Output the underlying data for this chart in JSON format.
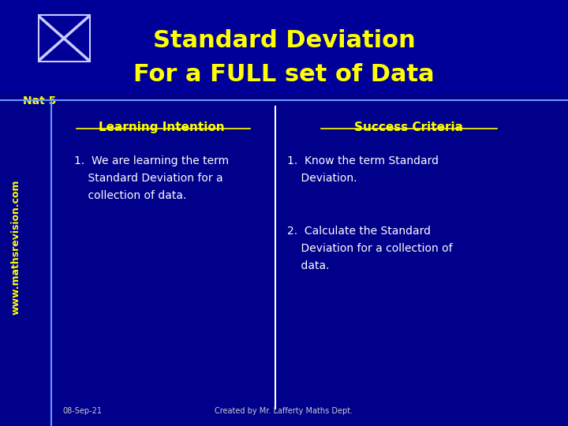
{
  "bg_color": "#00008B",
  "header_bg": "#000099",
  "title_line1": "Standard Deviation",
  "title_line2": "For a FULL set of Data",
  "title_color": "#FFFF00",
  "nat5_text": "Nat 5",
  "nat5_color": "#FFFF00",
  "sidebar_text": "www.mathsrevision.com",
  "sidebar_color": "#FFFF00",
  "left_header": "Learning Intention",
  "right_header": "Success Criteria",
  "header_color": "#FFFF00",
  "left_item": "1.  We are learning the term\n    Standard Deviation for a\n    collection of data.",
  "right_item1": "1.  Know the term Standard\n    Deviation.",
  "right_item2": "2.  Calculate the Standard\n    Deviation for a collection of\n    data.",
  "item_color": "#FFFFFF",
  "divider_color": "#FFFFFF",
  "footer_left": "08-Sep-21",
  "footer_center": "Created by Mr. Lafferty Maths Dept.",
  "footer_color": "#CCCCCC",
  "line_color": "#6699FF"
}
